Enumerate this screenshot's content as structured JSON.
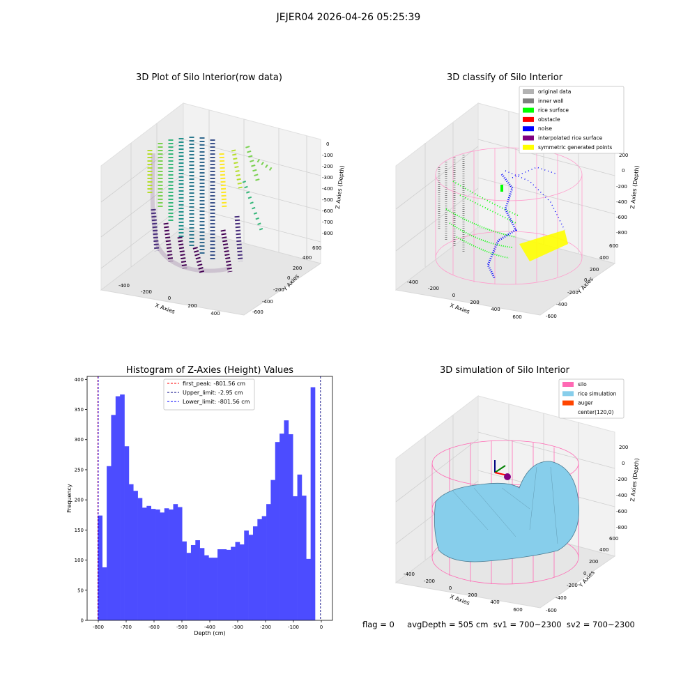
{
  "suptitle": "JEJER04 2026-04-26 05:25:39",
  "panels": {
    "raw": {
      "title": "3D Plot of Silo Interior(row data)",
      "x_label": "X Axies",
      "y_label": "Y Axies",
      "z_label": "Z Axies (Depth)",
      "x_ticks": [
        "-400",
        "-200",
        "0",
        "200",
        "400"
      ],
      "y_ticks": [
        "-600",
        "-400",
        "-200",
        "0",
        "200",
        "400",
        "600"
      ],
      "z_ticks": [
        "0",
        "-100",
        "-200",
        "-300",
        "-400",
        "-500",
        "-600",
        "-700",
        "-800"
      ]
    },
    "classify": {
      "title": "3D classify of Silo Interior",
      "x_label": "X Axies",
      "y_label": "Y Axies",
      "z_label": "Z Axies (Depth)",
      "x_ticks": [
        "-400",
        "-200",
        "0",
        "200",
        "400",
        "600"
      ],
      "y_ticks": [
        "-600",
        "-400",
        "-200",
        "0",
        "200",
        "400",
        "600"
      ],
      "z_ticks": [
        "200",
        "0",
        "-200",
        "-400",
        "-600",
        "-800"
      ],
      "legend": [
        {
          "label": "original data",
          "color": "#b3b3b3"
        },
        {
          "label": "inner wall",
          "color": "#808080"
        },
        {
          "label": "rice surface",
          "color": "#00ff00"
        },
        {
          "label": "obstacle",
          "color": "#ff0000"
        },
        {
          "label": "noise",
          "color": "#0000ff"
        },
        {
          "label": "interpolated rice surface",
          "color": "#800080"
        },
        {
          "label": "symmetric generated points",
          "color": "#ffff00"
        }
      ]
    },
    "simulation": {
      "title": "3D simulation of Silo Interior",
      "x_label": "X Axies",
      "y_label": "Y Axies",
      "z_label": "Z Axies (Depth)",
      "x_ticks": [
        "-400",
        "-200",
        "0",
        "200",
        "400",
        "600"
      ],
      "y_ticks": [
        "-600",
        "-400",
        "-200",
        "0",
        "200",
        "400",
        "600"
      ],
      "z_ticks": [
        "200",
        "0",
        "-200",
        "-400",
        "-600",
        "-800"
      ],
      "legend": [
        {
          "label": "silo",
          "color": "#ff69b4"
        },
        {
          "label": "rice simulation",
          "color": "#87ceeb"
        },
        {
          "label": "auger",
          "color": "#ff4500"
        },
        {
          "label": "center(120,0)",
          "color": "#ffffff"
        }
      ]
    }
  },
  "chart_data": {
    "type": "bar",
    "title": "Histogram of Z-Axies (Height) Values",
    "xlabel": "Depth (cm)",
    "ylabel": "Frequency",
    "xlim": [
      -840,
      40
    ],
    "ylim": [
      0,
      405
    ],
    "x_ticks": [
      -800,
      -700,
      -600,
      -500,
      -400,
      -300,
      -200,
      -100,
      0
    ],
    "y_ticks": [
      0,
      50,
      100,
      150,
      200,
      250,
      300,
      350,
      400
    ],
    "bin_start": -801.56,
    "bin_width": 15.9,
    "color": "#4c4cff",
    "values": [
      174,
      88,
      256,
      341,
      372,
      375,
      289,
      226,
      215,
      203,
      187,
      190,
      185,
      184,
      179,
      186,
      184,
      193,
      188,
      131,
      112,
      125,
      133,
      120,
      108,
      104,
      104,
      118,
      118,
      117,
      122,
      130,
      126,
      149,
      142,
      156,
      168,
      173,
      193,
      233,
      296,
      310,
      332,
      309,
      206,
      242,
      207,
      102,
      387
    ],
    "legend": [
      {
        "label": "first_peak: -801.56 cm",
        "value": -801.56,
        "color": "#ff0000"
      },
      {
        "label": "Upper_limit: -2.95 cm",
        "value": -2.95,
        "color": "#000080"
      },
      {
        "label": "Lower_limit: -801.56 cm",
        "value": -801.56,
        "color": "#0000ff"
      }
    ],
    "legend_position": "top-center"
  },
  "footer": {
    "flag": "flag = 0",
    "avg": "avgDepth = 505 cm  sv1 = 700~2300  sv2 = 700~2300"
  }
}
